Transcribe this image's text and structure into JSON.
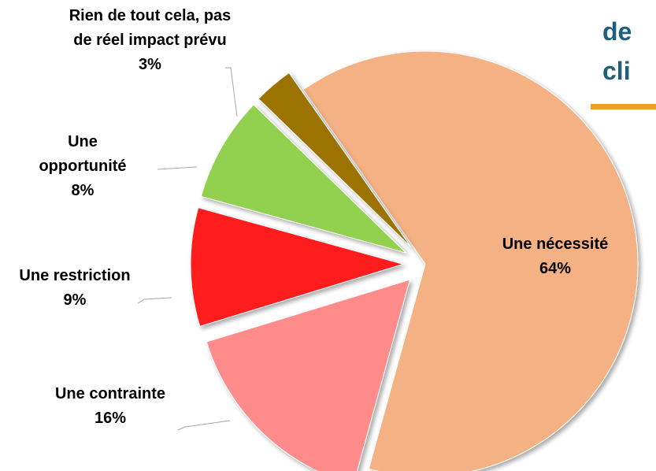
{
  "chart_data": {
    "type": "pie",
    "title": [
      "de",
      "cli"
    ],
    "categories": [
      "Une nécessité",
      "Une contrainte",
      "Une restriction",
      "Une opportunité",
      "Rien de tout cela, pas de réel impact prévu"
    ],
    "values": [
      64,
      16,
      9,
      8,
      3
    ],
    "value_labels": [
      "64%",
      "16%",
      "9%",
      "8%",
      "3%"
    ],
    "colors": [
      "#f4b183",
      "#ff8b8b",
      "#ff1a1a",
      "#92d050",
      "#9c7300"
    ]
  }
}
